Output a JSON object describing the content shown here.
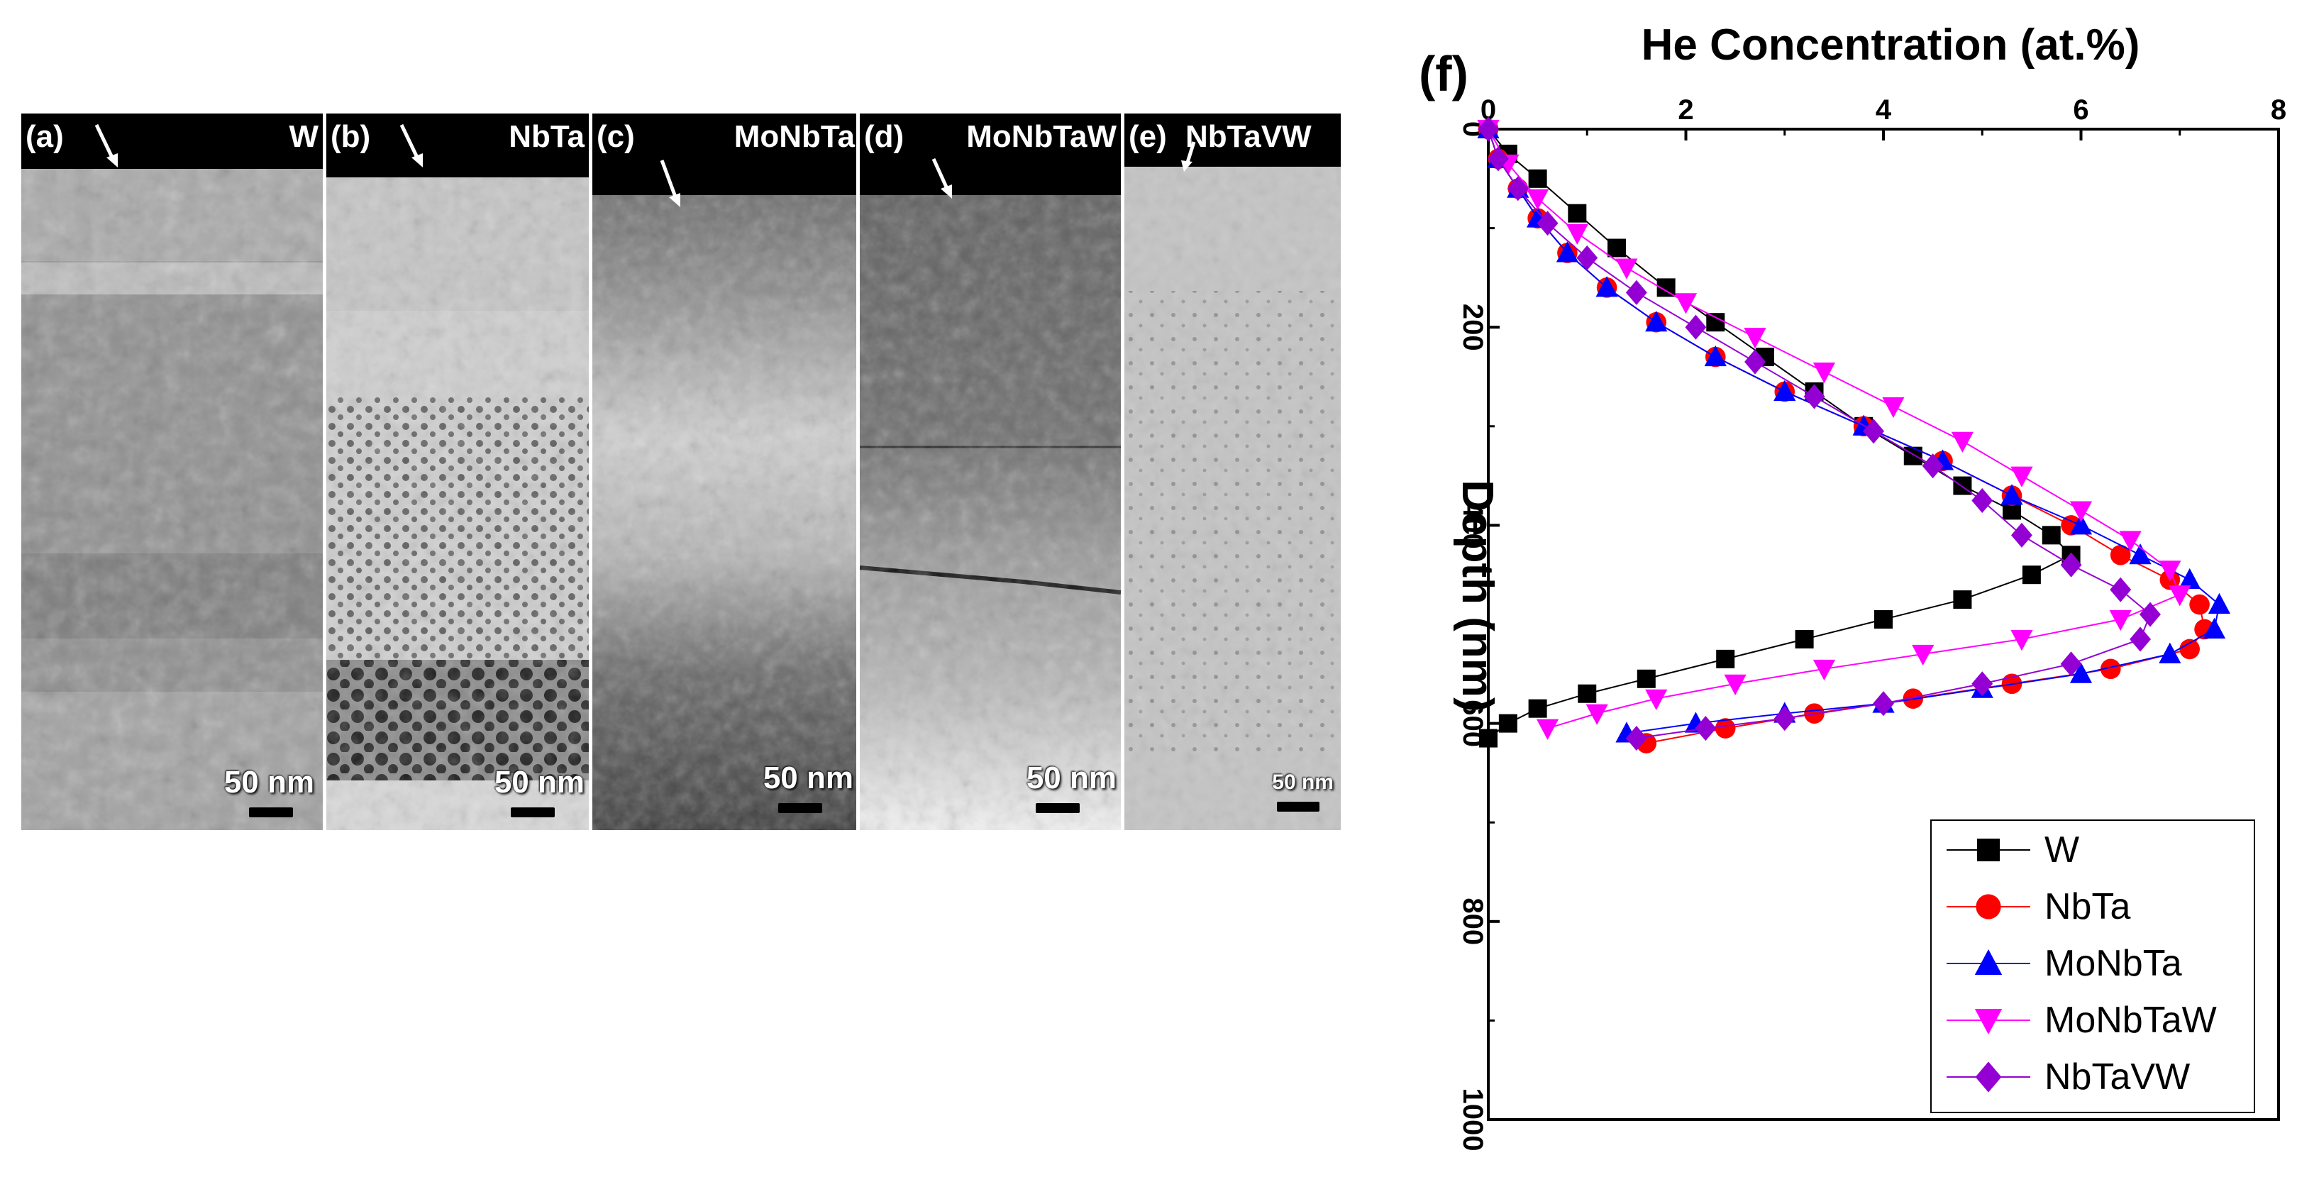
{
  "micrographs": {
    "panels": [
      {
        "label": "(a)",
        "material": "W",
        "scale_bar": "50 nm"
      },
      {
        "label": "(b)",
        "material": "NbTa",
        "scale_bar": "50 nm"
      },
      {
        "label": "(c)",
        "material": "MoNbTa",
        "scale_bar": "50 nm"
      },
      {
        "label": "(d)",
        "material": "MoNbTaW",
        "scale_bar": "50 nm"
      },
      {
        "label": "(e)",
        "material": "NbTaVW",
        "scale_bar": "50 nm"
      }
    ]
  },
  "chart_data": {
    "type": "scatter",
    "panel_label": "(f)",
    "title": "He Concentration (at.%)",
    "xlabel": "He Concentration (at.%)",
    "ylabel": "Depth (nm)",
    "xlim": [
      0,
      8
    ],
    "ylim": [
      0,
      1000
    ],
    "y_inverted": true,
    "x_axis_position": "top",
    "x_ticks": [
      0,
      2,
      4,
      6,
      8
    ],
    "y_ticks": [
      0,
      200,
      400,
      600,
      800,
      1000
    ],
    "legend_position": "bottom-right",
    "series": [
      {
        "name": "W",
        "color": "#000000",
        "marker": "square",
        "x": [
          0.0,
          0.2,
          0.5,
          0.9,
          1.3,
          1.8,
          2.3,
          2.8,
          3.3,
          3.8,
          4.3,
          4.8,
          5.3,
          5.7,
          5.9,
          5.5,
          4.8,
          4.0,
          3.2,
          2.4,
          1.6,
          1.0,
          0.5,
          0.2,
          0.0
        ],
        "y": [
          0,
          25,
          50,
          85,
          120,
          160,
          195,
          230,
          265,
          300,
          330,
          360,
          385,
          410,
          430,
          450,
          475,
          495,
          515,
          535,
          555,
          570,
          585,
          600,
          615
        ]
      },
      {
        "name": "NbTa",
        "color": "#ff0000",
        "marker": "circle",
        "x": [
          0.0,
          0.1,
          0.3,
          0.5,
          0.8,
          1.2,
          1.7,
          2.3,
          3.0,
          3.8,
          4.6,
          5.3,
          5.9,
          6.4,
          6.9,
          7.2,
          7.25,
          7.1,
          6.3,
          5.3,
          4.3,
          3.3,
          2.4,
          1.6
        ],
        "y": [
          0,
          30,
          60,
          90,
          125,
          160,
          195,
          230,
          265,
          300,
          335,
          370,
          400,
          430,
          455,
          480,
          505,
          525,
          545,
          560,
          575,
          590,
          605,
          620
        ]
      },
      {
        "name": "MoNbTa",
        "color": "#0000ff",
        "marker": "triangle-up",
        "x": [
          0.0,
          0.1,
          0.3,
          0.5,
          0.8,
          1.2,
          1.7,
          2.3,
          3.0,
          3.8,
          4.6,
          5.3,
          6.0,
          6.6,
          7.1,
          7.4,
          7.35,
          6.9,
          6.0,
          5.0,
          4.0,
          3.0,
          2.1,
          1.4
        ],
        "y": [
          0,
          30,
          60,
          90,
          125,
          160,
          195,
          230,
          265,
          300,
          335,
          370,
          400,
          430,
          455,
          480,
          505,
          530,
          550,
          565,
          580,
          590,
          600,
          610
        ]
      },
      {
        "name": "MoNbTaW",
        "color": "#ff00ff",
        "marker": "triangle-down",
        "x": [
          0.0,
          0.2,
          0.5,
          0.9,
          1.4,
          2.0,
          2.7,
          3.4,
          4.1,
          4.8,
          5.4,
          6.0,
          6.5,
          6.9,
          7.0,
          6.4,
          5.4,
          4.4,
          3.4,
          2.5,
          1.7,
          1.1,
          0.6
        ],
        "y": [
          0,
          35,
          70,
          105,
          140,
          175,
          210,
          245,
          280,
          315,
          350,
          385,
          415,
          445,
          470,
          495,
          515,
          530,
          545,
          560,
          575,
          590,
          605
        ]
      },
      {
        "name": "NbTaVW",
        "color": "#9400d3",
        "marker": "diamond",
        "x": [
          0.0,
          0.1,
          0.3,
          0.6,
          1.0,
          1.5,
          2.1,
          2.7,
          3.3,
          3.9,
          4.5,
          5.0,
          5.4,
          5.9,
          6.4,
          6.7,
          6.6,
          5.9,
          5.0,
          4.0,
          3.0,
          2.2,
          1.5
        ],
        "y": [
          0,
          30,
          60,
          95,
          130,
          165,
          200,
          235,
          270,
          305,
          340,
          375,
          410,
          440,
          465,
          490,
          515,
          540,
          560,
          580,
          595,
          605,
          615
        ]
      }
    ]
  }
}
